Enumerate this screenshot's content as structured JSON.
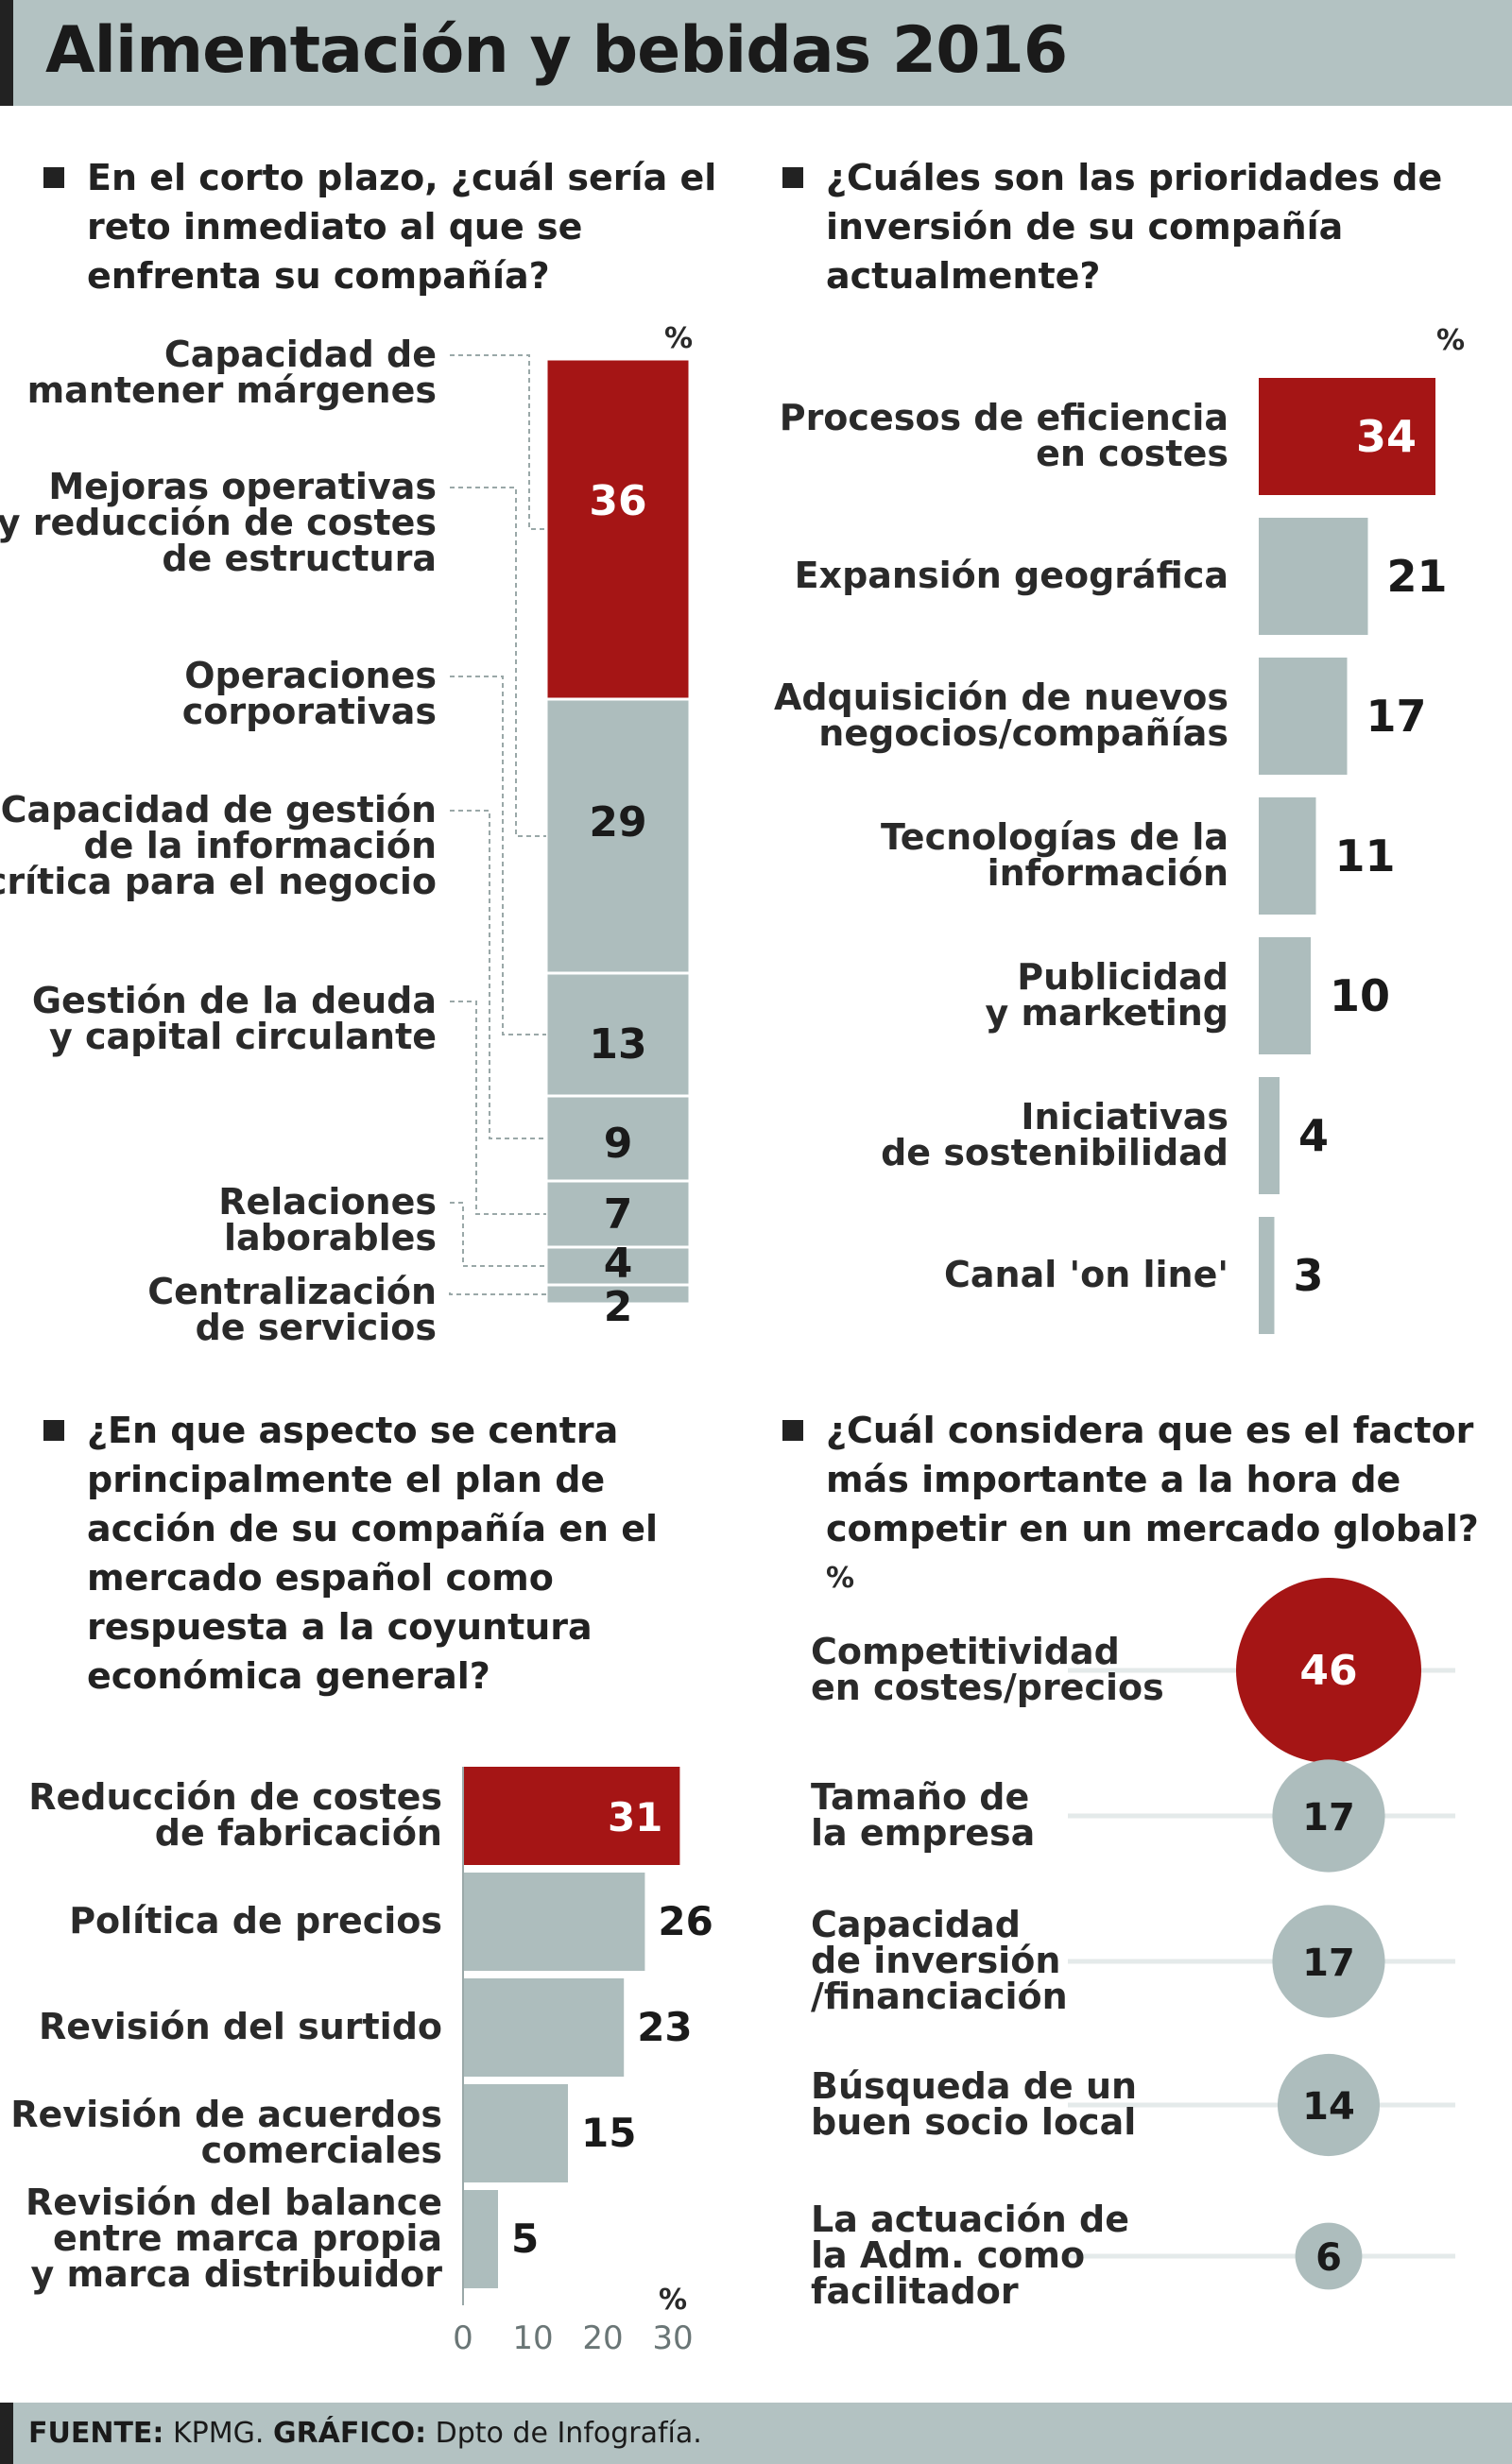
{
  "title": "Alimentación y bebidas 2016",
  "footer": {
    "fuente_label": "FUENTE:",
    "fuente": "KPMG.",
    "grafico_label": "GRÁFICO:",
    "grafico": "Dpto de Infografía."
  },
  "colors": {
    "highlight": "#a51515",
    "bar": "#adbdbd",
    "text": "#2a2a2a",
    "header_bg": "#b3c2c2"
  },
  "chart_data": [
    {
      "type": "bar",
      "title": "En el corto plazo, ¿cuál sería el reto inmediato al que se enfrenta su compañía?",
      "unit": "%",
      "stacked": true,
      "categories": [
        "Capacidad de mantener márgenes",
        "Mejoras operativas y reducción de costes de estructura",
        "Operaciones corporativas",
        "Capacidad de gestión de la información crítica para el negocio",
        "Gestión de la deuda y capital circulante",
        "Relaciones laborables",
        "Centralización de servicios"
      ],
      "label_lines": [
        [
          "Capacidad de",
          "mantener márgenes"
        ],
        [
          "Mejoras operativas",
          "y reducción de costes",
          "de estructura"
        ],
        [
          "Operaciones",
          "corporativas"
        ],
        [
          "Capacidad de gestión",
          "de la información",
          "crítica para el negocio"
        ],
        [
          "Gestión de la deuda",
          "y capital circulante"
        ],
        [
          "Relaciones",
          "laborables"
        ],
        [
          "Centralización",
          "de servicios"
        ]
      ],
      "values": [
        36,
        29,
        13,
        9,
        7,
        4,
        2
      ]
    },
    {
      "type": "bar",
      "title": "¿Cuáles son las prioridades de inversión de su compañía actualmente?",
      "unit": "%",
      "orientation": "horizontal",
      "categories": [
        "Procesos de eficiencia en costes",
        "Expansión geográfica",
        "Adquisición de nuevos negocios/compañías",
        "Tecnologías de la información",
        "Publicidad y marketing",
        "Iniciativas de sostenibilidad",
        "Canal 'on line'"
      ],
      "label_lines": [
        [
          "Procesos de eficiencia",
          "en costes"
        ],
        [
          "Expansión geográfica"
        ],
        [
          "Adquisición de nuevos",
          "negocios/compañías"
        ],
        [
          "Tecnologías de la",
          "información"
        ],
        [
          "Publicidad",
          "y marketing"
        ],
        [
          "Iniciativas",
          "de sostenibilidad"
        ],
        [
          "Canal 'on line'"
        ]
      ],
      "values": [
        34,
        21,
        17,
        11,
        10,
        4,
        3
      ]
    },
    {
      "type": "bar",
      "title": "¿En que aspecto se centra principalmente el plan de acción de su compañía en el mercado español como respuesta a la coyuntura económica general?",
      "unit": "%",
      "orientation": "horizontal",
      "categories": [
        "Reducción de costes de fabricación",
        "Política de precios",
        "Revisión del surtido",
        "Revisión de acuerdos comerciales",
        "Revisión del balance entre marca propia y marca distribuidor"
      ],
      "label_lines": [
        [
          "Reducción de costes",
          "de fabricación"
        ],
        [
          "Política de precios"
        ],
        [
          "Revisión del surtido"
        ],
        [
          "Revisión de acuerdos",
          "comerciales"
        ],
        [
          "Revisión del balance",
          "entre marca propia",
          "y marca distribuidor"
        ]
      ],
      "values": [
        31,
        26,
        23,
        15,
        5
      ],
      "xlim": [
        0,
        30
      ],
      "xticks": [
        "0",
        "10",
        "20",
        "30"
      ]
    },
    {
      "type": "scatter",
      "title": "¿Cuál considera que es el factor más importante a la hora de competir en un mercado global?",
      "unit": "%",
      "encoding": "bubble size",
      "categories": [
        "Competitividad en costes/precios",
        "Tamaño de la empresa",
        "Capacidad de inversión /financiación",
        "Búsqueda de un buen socio local",
        "La actuación de la Adm. como facilitador"
      ],
      "label_lines": [
        [
          "Competitividad",
          "en costes/precios"
        ],
        [
          "Tamaño de",
          "la empresa"
        ],
        [
          "Capacidad",
          "de inversión",
          "/financiación"
        ],
        [
          "Búsqueda de un",
          "buen socio local"
        ],
        [
          "La actuación de",
          "la Adm. como",
          "facilitador"
        ]
      ],
      "values": [
        46,
        17,
        17,
        14,
        6
      ]
    }
  ]
}
